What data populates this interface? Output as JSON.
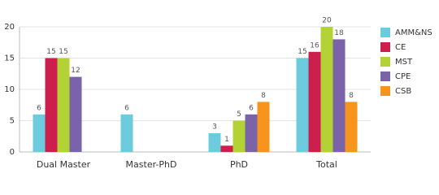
{
  "chart_data": {
    "type": "bar",
    "categories": [
      "Dual Master",
      "Master-PhD",
      "PhD",
      "Total"
    ],
    "series": [
      {
        "name": "AMM&NS",
        "color": "#6ccbdc",
        "values": [
          6,
          6,
          3,
          15
        ]
      },
      {
        "name": "CE",
        "color": "#cc1f4e",
        "values": [
          15,
          null,
          1,
          16
        ]
      },
      {
        "name": "MST",
        "color": "#b3d236",
        "values": [
          15,
          null,
          5,
          20
        ]
      },
      {
        "name": "CPE",
        "color": "#7a63a8",
        "values": [
          12,
          null,
          6,
          18
        ]
      },
      {
        "name": "CSB",
        "color": "#f7941d",
        "values": [
          null,
          null,
          8,
          8
        ]
      }
    ],
    "ylim": [
      0,
      20
    ],
    "yticks": [
      0,
      5,
      10,
      15,
      20
    ],
    "grid": true,
    "legend": "right"
  }
}
